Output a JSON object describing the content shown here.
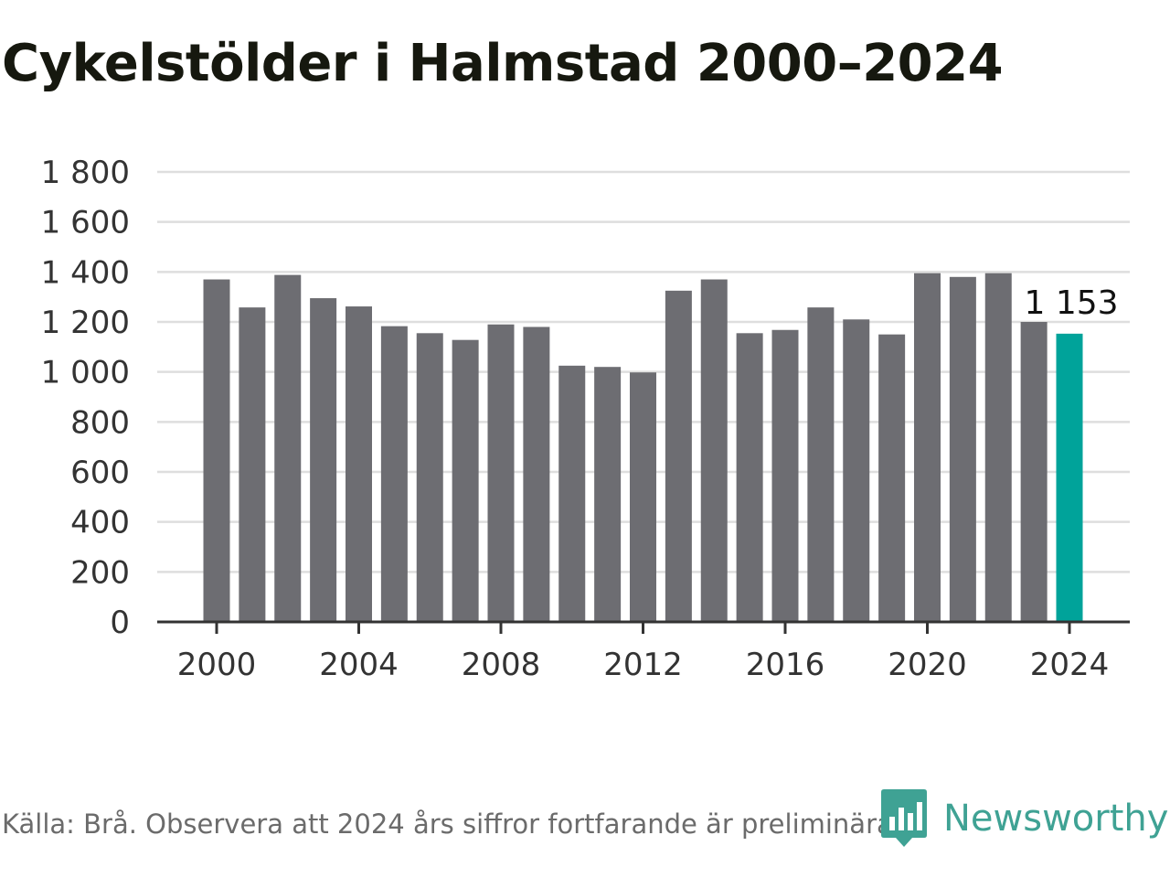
{
  "title": "Cykelstölder i Halmstad 2000–2024",
  "source": "Källa: Brå. Observera att 2024 års siffror fortfarande är preliminära.",
  "brand": {
    "name": "Newsworthy",
    "icon": "newsworthy-logo-icon",
    "color": "#3fa294"
  },
  "colors": {
    "bar": "#6d6d72",
    "highlight": "#00a39a",
    "grid": "#dedede",
    "axis": "#333333"
  },
  "chart_data": {
    "type": "bar",
    "x": [
      2000,
      2001,
      2002,
      2003,
      2004,
      2005,
      2006,
      2007,
      2008,
      2009,
      2010,
      2011,
      2012,
      2013,
      2014,
      2015,
      2016,
      2017,
      2018,
      2019,
      2020,
      2021,
      2022,
      2023,
      2024
    ],
    "values": [
      1370,
      1258,
      1388,
      1295,
      1262,
      1183,
      1155,
      1128,
      1190,
      1180,
      1025,
      1020,
      998,
      1325,
      1370,
      1155,
      1168,
      1258,
      1210,
      1150,
      1395,
      1380,
      1395,
      1200,
      1153
    ],
    "highlight_index": 24,
    "data_labels": [
      {
        "index": 24,
        "text": "1 153"
      }
    ],
    "ylim": [
      0,
      1800
    ],
    "yticks": [
      0,
      200,
      400,
      600,
      800,
      1000,
      1200,
      1400,
      1600,
      1800
    ],
    "ytick_labels": [
      "0",
      "200",
      "400",
      "600",
      "800",
      "1 000",
      "1 200",
      "1 400",
      "1 600",
      "1 800"
    ],
    "xticks": [
      2000,
      2004,
      2008,
      2012,
      2016,
      2020,
      2024
    ],
    "xtick_labels": [
      "2000",
      "2004",
      "2008",
      "2012",
      "2016",
      "2020",
      "2024"
    ],
    "grid": true,
    "xlabel": "",
    "ylabel": ""
  }
}
